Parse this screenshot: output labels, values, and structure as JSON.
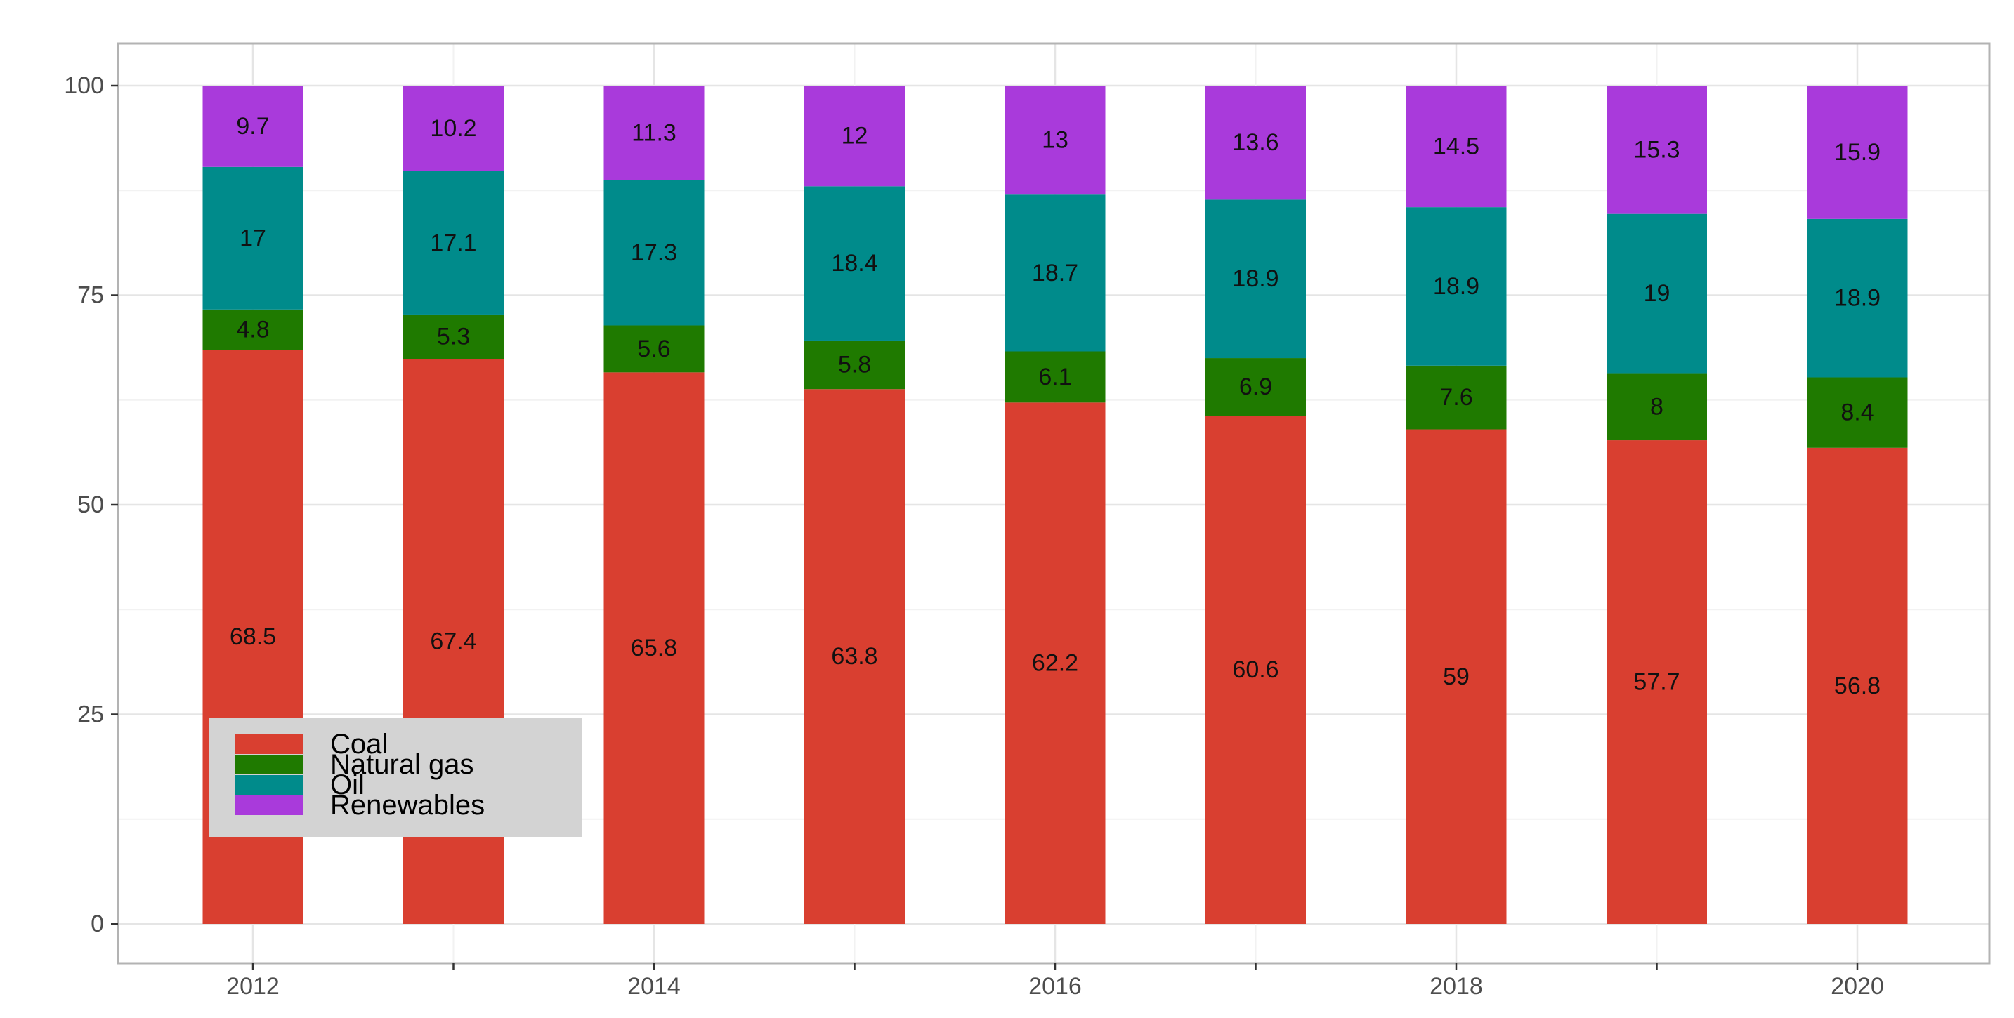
{
  "chart_data": {
    "type": "bar",
    "stacked": true,
    "title": "",
    "xlabel": "",
    "ylabel": "",
    "ylim": [
      0,
      100
    ],
    "y_ticks": [
      0,
      25,
      50,
      75,
      100
    ],
    "x_tick_labels": [
      "2012",
      "2014",
      "2016",
      "2018",
      "2020"
    ],
    "categories": [
      "2012",
      "2013",
      "2014",
      "2015",
      "2016",
      "2017",
      "2018",
      "2019",
      "2020"
    ],
    "series": [
      {
        "name": "Coal",
        "color": "#d93f30",
        "values": [
          68.5,
          67.4,
          65.8,
          63.8,
          62.2,
          60.6,
          59,
          57.7,
          56.8
        ]
      },
      {
        "name": "Natural gas",
        "color": "#1f7a00",
        "values": [
          4.8,
          5.3,
          5.6,
          5.8,
          6.1,
          6.9,
          7.6,
          8,
          8.4
        ]
      },
      {
        "name": "Oil",
        "color": "#008b8b",
        "values": [
          17,
          17.1,
          17.3,
          18.4,
          18.7,
          18.9,
          18.9,
          19,
          18.9
        ]
      },
      {
        "name": "Renewables",
        "color": "#a93adb",
        "values": [
          9.7,
          10.2,
          11.3,
          12,
          13,
          13.6,
          14.5,
          15.3,
          15.9
        ]
      }
    ],
    "legend": {
      "position": "bottom-left",
      "background": "#d3d3d3"
    },
    "grid": true,
    "panel_border_color": "#b3b3b3",
    "grid_major_color": "#e5e5e5",
    "grid_minor_color": "#f2f2f2"
  }
}
